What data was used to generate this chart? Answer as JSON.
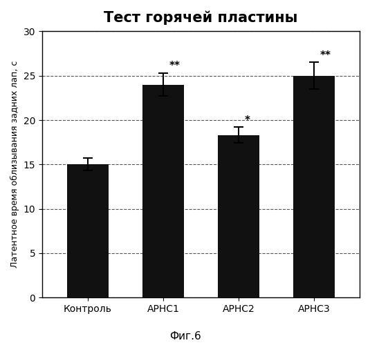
{
  "title": "Тест горячей пластины",
  "xlabel_labels": [
    "Контроль",
    "АРНС1",
    "АРНС2",
    "АРНС3"
  ],
  "values": [
    15.0,
    24.0,
    18.3,
    25.0
  ],
  "errors": [
    0.7,
    1.3,
    0.9,
    1.5
  ],
  "bar_color": "#111111",
  "ylim": [
    0,
    30
  ],
  "yticks": [
    0,
    5,
    10,
    15,
    20,
    25,
    30
  ],
  "ylabel": "Латентное время облизывания задних лап, с",
  "caption": "Фиг.6",
  "significance": [
    "",
    "**",
    "*",
    "**"
  ],
  "background_color": "#ffffff",
  "plot_bg_color": "#ffffff",
  "grid_color": "#555555",
  "title_fontsize": 15,
  "ylabel_fontsize": 9,
  "tick_fontsize": 10,
  "caption_fontsize": 11,
  "sig_fontsize": 11
}
